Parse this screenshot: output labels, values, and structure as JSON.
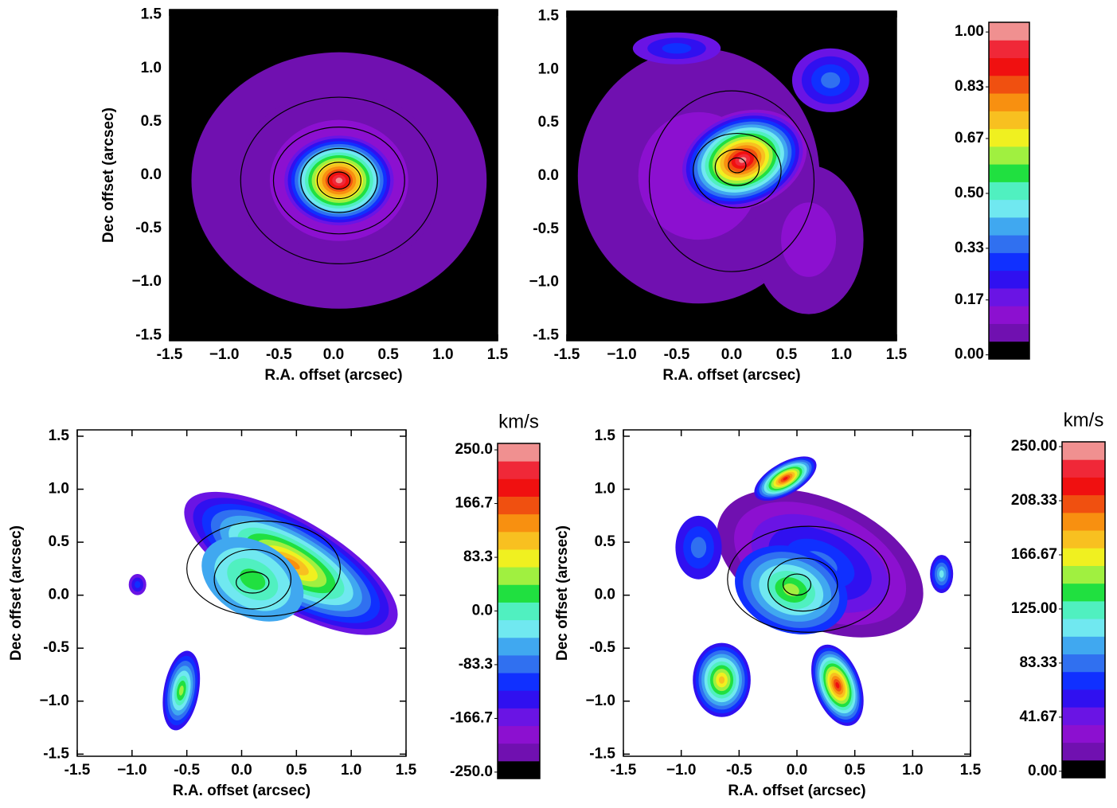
{
  "chart_data": [
    {
      "type": "heatmap",
      "xlabel": "R.A. offset (arcsec)",
      "ylabel": "Dec offset (arcsec)",
      "xlim": [
        -1.5,
        1.5
      ],
      "ylim": [
        -1.55,
        1.55
      ],
      "xticks": [
        -1.5,
        {
          "value": -1.0,
          "label": "−1.0"
        },
        -0.5,
        {
          "value": 0,
          "label": "0.0"
        },
        0.5,
        {
          "value": 1,
          "label": "1.0"
        },
        1.5
      ],
      "yticks": [
        -1.5,
        {
          "value": -1.0,
          "label": "−1.0"
        },
        -0.5,
        {
          "value": 0,
          "label": "0.0"
        },
        0.5,
        {
          "value": 1,
          "label": "1.0"
        },
        1.5
      ]
    },
    {
      "type": "heatmap",
      "xlabel": "R.A. offset (arcsec)",
      "xlim": [
        -1.5,
        1.5
      ],
      "ylim": [
        -1.55,
        1.55
      ],
      "xticks": [
        -1.5,
        {
          "value": -1.0,
          "label": "−1.0"
        },
        -0.5,
        {
          "value": 0,
          "label": "0.0"
        },
        0.5,
        {
          "value": 1,
          "label": "1.0"
        },
        1.5
      ],
      "yticks": [
        -1.5,
        {
          "value": -1.0,
          "label": "−1.0"
        },
        -0.5,
        {
          "value": 0,
          "label": "0.0"
        },
        0.5,
        {
          "value": 1,
          "label": "1.0"
        },
        1.5
      ],
      "colorbar": {
        "lim": [
          -0.013,
          1.03
        ],
        "ticks": [
          {
            "value": 0,
            "label": "0.00"
          },
          0.17,
          0.33,
          {
            "value": 0.5,
            "label": "0.50"
          },
          0.67,
          0.83,
          {
            "value": 1,
            "label": "1.00"
          }
        ]
      }
    },
    {
      "type": "heatmap",
      "xlabel": "R.A. offset (arcsec)",
      "ylabel": "Dec offset (arcsec)",
      "xlim": [
        -1.5,
        1.5
      ],
      "ylim": [
        -1.52,
        1.56
      ],
      "xticks": [
        -1.5,
        {
          "value": -1.0,
          "label": "−1.0"
        },
        -0.5,
        {
          "value": 0,
          "label": "0.0"
        },
        0.5,
        {
          "value": 1,
          "label": "1.0"
        },
        1.5
      ],
      "yticks": [
        -1.5,
        {
          "value": -1.0,
          "label": "−1.0"
        },
        -0.5,
        {
          "value": 0,
          "label": "0.0"
        },
        0.5,
        {
          "value": 1,
          "label": "1.0"
        },
        1.5
      ],
      "colorbar": {
        "unit": "km/s",
        "lim": [
          -260,
          260
        ],
        "ticks": [
          {
            "value": -250,
            "label": "-250.0"
          },
          -166.7,
          -83.3,
          {
            "value": 0,
            "label": "0.0"
          },
          83.3,
          166.7,
          {
            "value": 250,
            "label": "250.0"
          }
        ]
      }
    },
    {
      "type": "heatmap",
      "xlabel": "R.A. offset (arcsec)",
      "ylabel": "Dec offset (arcsec)",
      "xlim": [
        -1.5,
        1.5
      ],
      "ylim": [
        -1.52,
        1.56
      ],
      "xticks": [
        -1.5,
        {
          "value": -1.0,
          "label": "−1.0"
        },
        -0.5,
        {
          "value": 0,
          "label": "0.0"
        },
        0.5,
        {
          "value": 1,
          "label": "1.0"
        },
        1.5
      ],
      "yticks": [
        -1.5,
        {
          "value": -1.0,
          "label": "−1.0"
        },
        -0.5,
        {
          "value": 0,
          "label": "0.0"
        },
        0.5,
        {
          "value": 1,
          "label": "1.0"
        },
        1.5
      ],
      "colorbar": {
        "unit": "km/s",
        "lim": [
          -5,
          253.7
        ],
        "ticks": [
          {
            "value": 0,
            "label": "0.00"
          },
          41.67,
          83.33,
          {
            "value": 125,
            "label": "125.00"
          },
          166.67,
          208.33,
          {
            "value": 250,
            "label": "250.00"
          }
        ]
      }
    }
  ]
}
